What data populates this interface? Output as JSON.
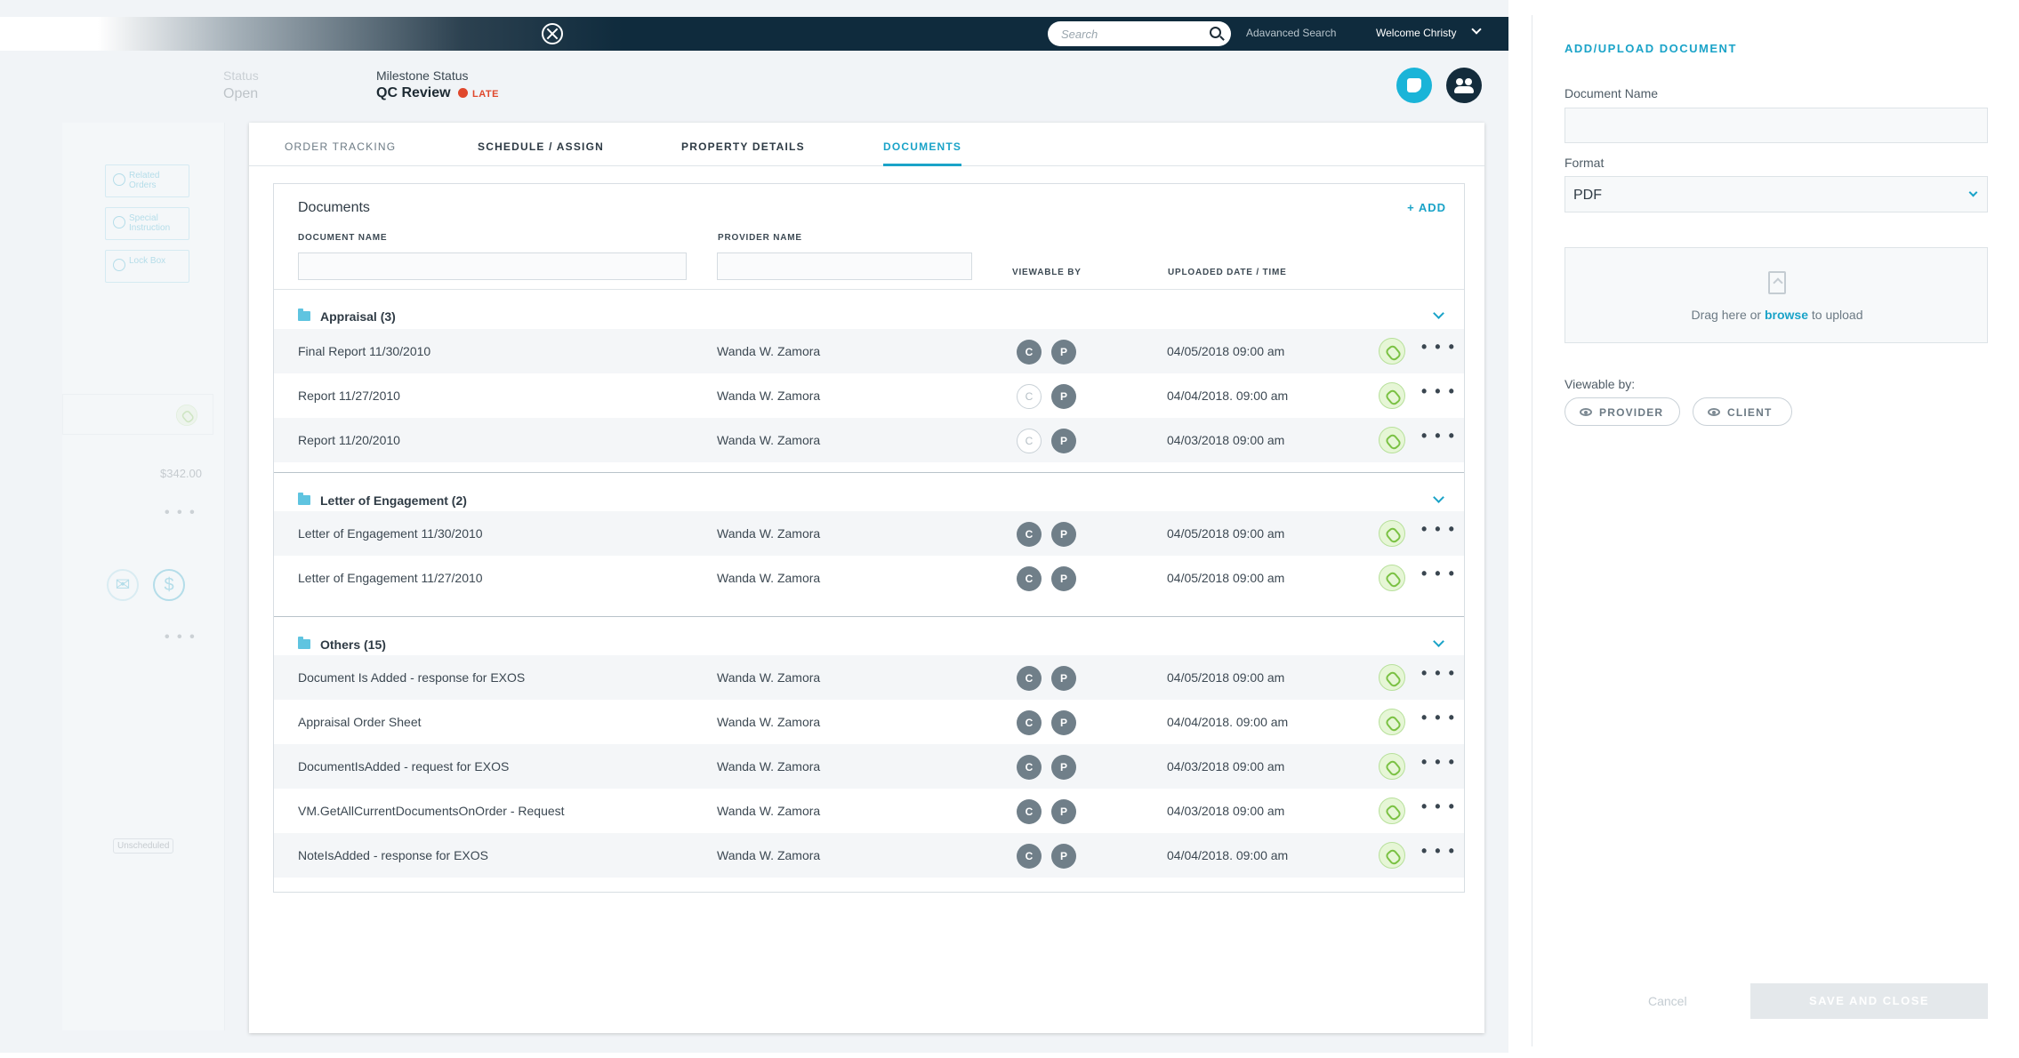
{
  "header": {
    "search_placeholder": "Search",
    "advanced_search": "Adavanced Search",
    "welcome": "Welcome Christy"
  },
  "order": {
    "status_label": "Status",
    "status_value": "Open",
    "milestone_label": "Milestone Status",
    "milestone_value": "QC Review",
    "late_label": "LATE"
  },
  "left_panel": {
    "links": [
      "Related Orders",
      "Special Instruction",
      "Lock Box"
    ],
    "amount": "$342.00",
    "chip": "Unscheduled"
  },
  "tabs": [
    {
      "label": "ORDER TRACKING",
      "active": false
    },
    {
      "label": "SCHEDULE / ASSIGN",
      "active": false
    },
    {
      "label": "PROPERTY DETAILS",
      "active": false
    },
    {
      "label": "DOCUMENTS",
      "active": true
    }
  ],
  "documents": {
    "title": "Documents",
    "add_label": "+ ADD",
    "columns": {
      "document_name": "DOCUMENT NAME",
      "provider_name": "PROVIDER NAME",
      "viewable_by": "VIEWABLE BY",
      "uploaded": "UPLOADED DATE / TIME"
    },
    "groups": [
      {
        "label": "Appraisal (3)",
        "rows": [
          {
            "name": "Final Report 11/30/2010",
            "provider": "Wanda W. Zamora",
            "c": true,
            "p": true,
            "date": "04/05/2018  09:00 am"
          },
          {
            "name": "Report 11/27/2010",
            "provider": "Wanda W. Zamora",
            "c": false,
            "p": true,
            "date": "04/04/2018. 09:00 am"
          },
          {
            "name": "Report 11/20/2010",
            "provider": "Wanda W. Zamora",
            "c": false,
            "p": true,
            "date": "04/03/2018  09:00 am"
          }
        ]
      },
      {
        "label": "Letter of Engagement (2)",
        "rows": [
          {
            "name": "Letter of Engagement 11/30/2010",
            "provider": "Wanda W. Zamora",
            "c": true,
            "p": true,
            "date": "04/05/2018  09:00 am"
          },
          {
            "name": "Letter of Engagement 11/27/2010",
            "provider": "Wanda W. Zamora",
            "c": true,
            "p": true,
            "date": "04/05/2018  09:00 am"
          }
        ]
      },
      {
        "label": "Others (15)",
        "rows": [
          {
            "name": "Document Is Added - response for EXOS",
            "provider": "Wanda W. Zamora",
            "c": true,
            "p": true,
            "date": "04/05/2018  09:00 am"
          },
          {
            "name": "Appraisal Order Sheet",
            "provider": "Wanda W. Zamora",
            "c": true,
            "p": true,
            "date": "04/04/2018. 09:00 am"
          },
          {
            "name": "DocumentIsAdded - request for EXOS",
            "provider": "Wanda W. Zamora",
            "c": true,
            "p": true,
            "date": "04/03/2018  09:00 am"
          },
          {
            "name": "VM.GetAllCurrentDocumentsOnOrder - Request",
            "provider": "Wanda W. Zamora",
            "c": true,
            "p": true,
            "date": "04/03/2018  09:00 am"
          },
          {
            "name": "NoteIsAdded - response for EXOS",
            "provider": "Wanda W. Zamora",
            "c": true,
            "p": true,
            "date": "04/04/2018. 09:00 am"
          }
        ]
      }
    ],
    "c_letter": "C",
    "p_letter": "P",
    "more": "• • •"
  },
  "drawer": {
    "title": "ADD/UPLOAD DOCUMENT",
    "doc_name_label": "Document Name",
    "doc_name_value": "",
    "format_label": "Format",
    "format_value": "PDF",
    "drop_pre": "Drag here or ",
    "drop_link": "browse",
    "drop_post": " to upload",
    "viewable_label": "Viewable by:",
    "provider_btn": "PROVIDER",
    "client_btn": "CLIENT",
    "cancel": "Cancel",
    "save": "SAVE AND CLOSE"
  }
}
